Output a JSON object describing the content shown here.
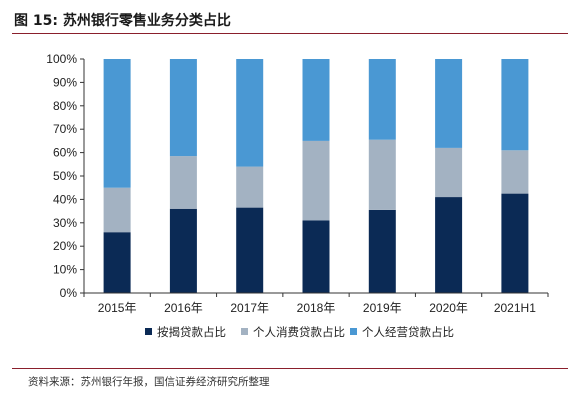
{
  "title": "图 15:  苏州银行零售业务分类占比",
  "source": "资料来源：苏州银行年报，国信证券经济研究所整理",
  "colors": {
    "series1": "#0b2a55",
    "series2": "#a3b2c2",
    "series3": "#4a98d3",
    "axis": "#333333"
  },
  "chart_data": {
    "type": "bar",
    "stacked": true,
    "title": "苏州银行零售业务分类占比",
    "categories": [
      "2015年",
      "2016年",
      "2017年",
      "2018年",
      "2019年",
      "2020年",
      "2021H1"
    ],
    "series": [
      {
        "name": "按揭贷款占比",
        "values": [
          26,
          36,
          36.5,
          31,
          35.5,
          41,
          42.5
        ]
      },
      {
        "name": "个人消费贷款占比",
        "values": [
          19,
          22.5,
          17.5,
          34,
          30,
          21,
          18.5
        ]
      },
      {
        "name": "个人经营贷款占比",
        "values": [
          55,
          41.5,
          46,
          35,
          34.5,
          38,
          39
        ]
      }
    ],
    "ylim": [
      0,
      100
    ],
    "yticks": [
      "0%",
      "10%",
      "20%",
      "30%",
      "40%",
      "50%",
      "60%",
      "70%",
      "80%",
      "90%",
      "100%"
    ],
    "legend_position": "bottom",
    "grid": false
  }
}
